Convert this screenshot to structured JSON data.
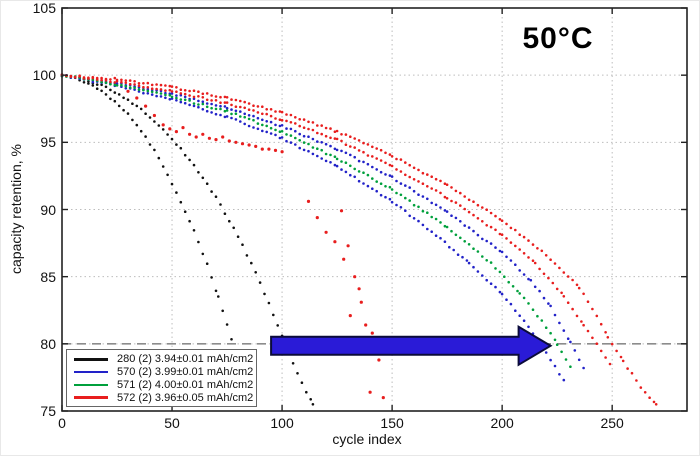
{
  "figure": {
    "temperature_label": "50°C"
  },
  "chart_data": {
    "type": "scatter",
    "title": "",
    "xlabel": "cycle index",
    "ylabel": "capacity retention, %",
    "xlim": [
      0,
      284
    ],
    "ylim": [
      75,
      105
    ],
    "xticks": [
      0,
      50,
      100,
      150,
      200,
      250
    ],
    "yticks": [
      75,
      80,
      85,
      90,
      95,
      100,
      105
    ],
    "grid": "dotted",
    "grid_color": "#bdbdbd",
    "axis_color": "#222222",
    "legend": {
      "position": "lower-left",
      "entries": [
        {
          "label": "280 (2) 3.94±0.01 mAh/cm2",
          "color": "#111111"
        },
        {
          "label": "570 (2) 3.99±0.01 mAh/cm2",
          "color": "#2222c8"
        },
        {
          "label": "571 (2) 4.00±0.01 mAh/cm2",
          "color": "#00a03c"
        },
        {
          "label": "572 (2) 3.96±0.05 mAh/cm2",
          "color": "#e81e1e"
        }
      ]
    },
    "annotations": {
      "temperature": "50°C",
      "threshold_line": {
        "y": 80,
        "style": "dashed",
        "color": "#8c8c8c"
      },
      "arrow": {
        "shape": "right-arrow",
        "color": "#2a1bd7",
        "outline": "#0b0b3a",
        "from_cycle": 95,
        "to_cycle": 222,
        "at_retention": 80
      }
    },
    "series": [
      {
        "name": "280 cell 1",
        "group": "280 (2) 3.94±0.01 mAh/cm2",
        "color": "#111111",
        "style": "dense",
        "points": [
          [
            0,
            100
          ],
          [
            6,
            99.8
          ],
          [
            12,
            99.4
          ],
          [
            18,
            98.8
          ],
          [
            24,
            98.0
          ],
          [
            30,
            97.1
          ],
          [
            36,
            95.9
          ],
          [
            42,
            94.4
          ],
          [
            48,
            92.6
          ],
          [
            54,
            90.6
          ],
          [
            60,
            88.4
          ],
          [
            66,
            85.9
          ],
          [
            71,
            83.5
          ],
          [
            75,
            81.4
          ],
          [
            79,
            79.2
          ],
          [
            83,
            76.9
          ],
          [
            86,
            75.5
          ]
        ]
      },
      {
        "name": "280 cell 2",
        "group": "280 (2) 3.94±0.01 mAh/cm2",
        "color": "#111111",
        "style": "dense",
        "points": [
          [
            0,
            100
          ],
          [
            10,
            99.7
          ],
          [
            20,
            99.1
          ],
          [
            30,
            98.2
          ],
          [
            40,
            96.9
          ],
          [
            50,
            95.3
          ],
          [
            60,
            93.3
          ],
          [
            70,
            90.9
          ],
          [
            80,
            88.0
          ],
          [
            88,
            85.3
          ],
          [
            96,
            82.2
          ],
          [
            103,
            79.3
          ],
          [
            109,
            77.1
          ],
          [
            114,
            75.5
          ]
        ]
      },
      {
        "name": "570 cell 1",
        "group": "570 (2) 3.99±0.01 mAh/cm2",
        "color": "#2222c8",
        "style": "dense",
        "points": [
          [
            0,
            100
          ],
          [
            25,
            99.4
          ],
          [
            50,
            98.6
          ],
          [
            75,
            97.6
          ],
          [
            100,
            96.2
          ],
          [
            125,
            94.5
          ],
          [
            150,
            92.4
          ],
          [
            175,
            89.8
          ],
          [
            200,
            86.8
          ],
          [
            213,
            84.7
          ],
          [
            222,
            82.8
          ],
          [
            231,
            80.1
          ],
          [
            237,
            78.2
          ]
        ]
      },
      {
        "name": "570 cell 2",
        "group": "570 (2) 3.99±0.01 mAh/cm2",
        "color": "#2222c8",
        "style": "dense",
        "points": [
          [
            0,
            100
          ],
          [
            25,
            99.2
          ],
          [
            50,
            98.2
          ],
          [
            75,
            96.9
          ],
          [
            100,
            95.3
          ],
          [
            125,
            93.2
          ],
          [
            150,
            90.6
          ],
          [
            170,
            88.1
          ],
          [
            185,
            86.0
          ],
          [
            200,
            83.7
          ],
          [
            210,
            81.7
          ],
          [
            218,
            79.9
          ],
          [
            224,
            78.3
          ],
          [
            228,
            77.3
          ]
        ]
      },
      {
        "name": "571 cells 1-2",
        "group": "571 (2) 4.00±0.01 mAh/cm2",
        "color": "#00a03c",
        "style": "dense",
        "points": [
          [
            0,
            100
          ],
          [
            25,
            99.3
          ],
          [
            50,
            98.4
          ],
          [
            75,
            97.3
          ],
          [
            100,
            95.8
          ],
          [
            125,
            93.8
          ],
          [
            150,
            91.5
          ],
          [
            175,
            88.7
          ],
          [
            195,
            86.0
          ],
          [
            208,
            83.8
          ],
          [
            218,
            81.7
          ],
          [
            225,
            80.0
          ],
          [
            231,
            78.3
          ]
        ]
      },
      {
        "name": "572 cell 1",
        "group": "572 (2) 3.96±0.05 mAh/cm2",
        "color": "#e81e1e",
        "style": "dense",
        "points": [
          [
            0,
            100
          ],
          [
            25,
            99.7
          ],
          [
            50,
            99.1
          ],
          [
            75,
            98.3
          ],
          [
            100,
            97.2
          ],
          [
            125,
            95.8
          ],
          [
            150,
            94.0
          ],
          [
            175,
            91.8
          ],
          [
            200,
            89.2
          ],
          [
            220,
            86.6
          ],
          [
            235,
            84.2
          ],
          [
            243,
            82.1
          ],
          [
            248,
            80.5
          ],
          [
            255,
            78.7
          ],
          [
            263,
            76.8
          ],
          [
            270,
            75.5
          ]
        ]
      },
      {
        "name": "572 cell 2",
        "group": "572 (2) 3.96±0.05 mAh/cm2",
        "color": "#e81e1e",
        "style": "dense",
        "points": [
          [
            0,
            100
          ],
          [
            25,
            99.5
          ],
          [
            50,
            98.8
          ],
          [
            75,
            97.9
          ],
          [
            100,
            96.7
          ],
          [
            125,
            95.2
          ],
          [
            150,
            93.2
          ],
          [
            175,
            90.9
          ],
          [
            200,
            88.1
          ],
          [
            215,
            86.0
          ],
          [
            228,
            83.6
          ],
          [
            237,
            81.4
          ],
          [
            243,
            80.0
          ],
          [
            249,
            78.5
          ]
        ]
      },
      {
        "name": "572 outlier points",
        "group": "572 (2) 3.96±0.05 mAh/cm2",
        "color": "#e81e1e",
        "style": "scatter",
        "points": [
          [
            30,
            98.8
          ],
          [
            34,
            98.3
          ],
          [
            38,
            97.7
          ],
          [
            42,
            97.0
          ],
          [
            46,
            96.3
          ],
          [
            49,
            96.0
          ],
          [
            52,
            95.8
          ],
          [
            55,
            96.1
          ],
          [
            58,
            95.6
          ],
          [
            61,
            95.4
          ],
          [
            64,
            95.6
          ],
          [
            67,
            95.3
          ],
          [
            70,
            95.2
          ],
          [
            73,
            95.4
          ],
          [
            76,
            95.1
          ],
          [
            79,
            95.0
          ],
          [
            82,
            94.9
          ],
          [
            85,
            94.8
          ],
          [
            88,
            94.7
          ],
          [
            91,
            94.5
          ],
          [
            94,
            94.5
          ],
          [
            97,
            94.4
          ],
          [
            100,
            94.3
          ],
          [
            112,
            90.6
          ],
          [
            116,
            89.4
          ],
          [
            120,
            88.3
          ],
          [
            124,
            87.6
          ],
          [
            127,
            89.9
          ],
          [
            128,
            86.3
          ],
          [
            130,
            87.3
          ],
          [
            131,
            82.1
          ],
          [
            133,
            85.0
          ],
          [
            135,
            84.1
          ],
          [
            136,
            83.1
          ],
          [
            138,
            81.4
          ],
          [
            140,
            76.4
          ],
          [
            141,
            80.8
          ],
          [
            144,
            78.8
          ],
          [
            146,
            76.0
          ]
        ]
      }
    ]
  }
}
